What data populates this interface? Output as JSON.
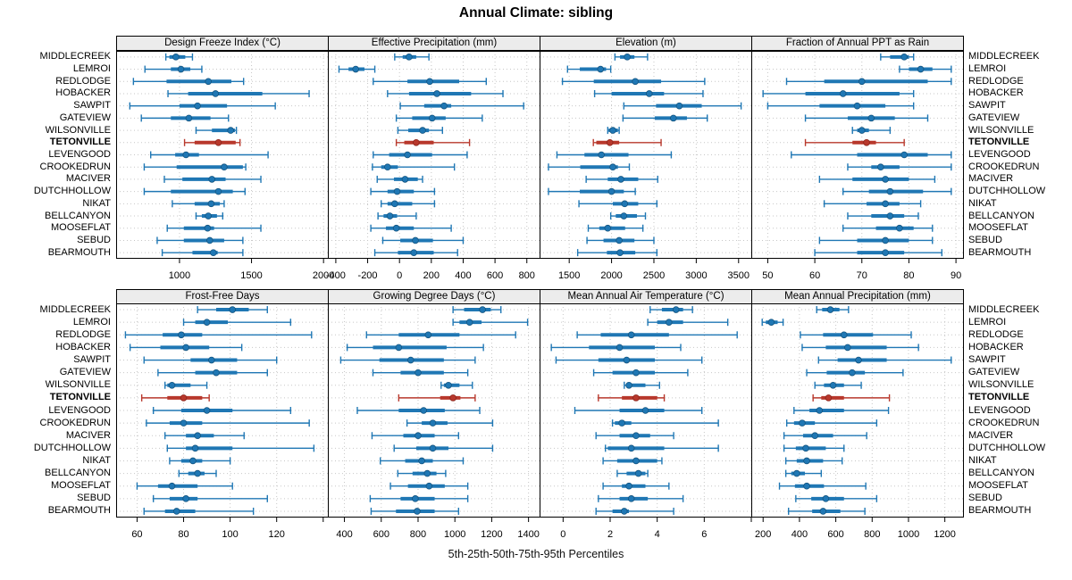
{
  "title": "Annual Climate: sibling",
  "caption": "5th-25th-50th-75th-95th Percentiles",
  "colors": {
    "series": "#1f77b4",
    "series_dark": "#14547f",
    "highlight": "#b8382c",
    "highlight_dark": "#8a241b",
    "strip_bg": "#ececec",
    "grid": "#c7c7c7",
    "border": "#000000"
  },
  "chart_data": {
    "type": "dotplot",
    "note": "Each row shows 5th-25th-50th-75th-95th percentile whisker/bar/dot",
    "percentile_labels": [
      "5th",
      "25th",
      "50th",
      "75th",
      "95th"
    ],
    "legend_position": "none",
    "grid": "dotted",
    "highlight_site": "TETONVILLE",
    "sites": [
      "MIDDLECREEK",
      "LEMROI",
      "REDLODGE",
      "HOBACKER",
      "SAWPIT",
      "GATEVIEW",
      "WILSONVILLE",
      "TETONVILLE",
      "LEVENGOOD",
      "CROOKEDRUN",
      "MACIVER",
      "DUTCHHOLLOW",
      "NIKAT",
      "BELLCANYON",
      "MOOSEFLAT",
      "SEBUD",
      "BEARMOUTH"
    ],
    "panels": [
      {
        "id": "design-freeze-index",
        "title": "Design Freeze Index (°C)",
        "xlim": [
          560,
          2030
        ],
        "ticks": [
          1000,
          1500,
          2000
        ],
        "tick_labels": [
          "1000",
          "1500",
          "2000"
        ],
        "values": [
          [
            905,
            930,
            975,
            1040,
            1090
          ],
          [
            760,
            940,
            1010,
            1075,
            1155
          ],
          [
            680,
            910,
            1200,
            1360,
            1445
          ],
          [
            920,
            1060,
            1250,
            1575,
            1900
          ],
          [
            655,
            1000,
            1125,
            1330,
            1665
          ],
          [
            735,
            940,
            1065,
            1215,
            1340
          ],
          [
            1115,
            1225,
            1355,
            1385,
            1395
          ],
          [
            1035,
            1105,
            1270,
            1390,
            1420
          ],
          [
            800,
            970,
            1045,
            1135,
            1615
          ],
          [
            755,
            980,
            1310,
            1440,
            1460
          ],
          [
            895,
            1020,
            1225,
            1320,
            1565
          ],
          [
            755,
            940,
            1270,
            1370,
            1455
          ],
          [
            950,
            1105,
            1220,
            1280,
            1310
          ],
          [
            1115,
            1155,
            1200,
            1260,
            1300
          ],
          [
            915,
            1030,
            1195,
            1240,
            1565
          ],
          [
            845,
            1030,
            1210,
            1310,
            1440
          ],
          [
            880,
            1090,
            1235,
            1265,
            1440
          ]
        ]
      },
      {
        "id": "effective-precipitation",
        "title": "Effective Precipitation (mm)",
        "xlim": [
          -450,
          880
        ],
        "ticks": [
          -400,
          -200,
          0,
          200,
          400,
          600,
          800
        ],
        "tick_labels": [
          "-400",
          "-200",
          "0",
          "200",
          "400",
          "600",
          "800"
        ],
        "values": [
          [
            -30,
            20,
            60,
            105,
            185
          ],
          [
            -380,
            -320,
            -275,
            -220,
            -155
          ],
          [
            -165,
            50,
            190,
            375,
            545
          ],
          [
            -75,
            60,
            235,
            450,
            650
          ],
          [
            5,
            155,
            280,
            325,
            780
          ],
          [
            -20,
            80,
            205,
            290,
            520
          ],
          [
            -10,
            55,
            145,
            185,
            270
          ],
          [
            -20,
            30,
            105,
            215,
            440
          ],
          [
            -165,
            -65,
            50,
            205,
            425
          ],
          [
            -170,
            -115,
            -75,
            -10,
            345
          ],
          [
            -140,
            -35,
            35,
            115,
            145
          ],
          [
            -180,
            -75,
            -15,
            90,
            220
          ],
          [
            -115,
            -75,
            -30,
            80,
            220
          ],
          [
            -135,
            -100,
            -60,
            -15,
            105
          ],
          [
            -180,
            -85,
            -20,
            90,
            325
          ],
          [
            -105,
            5,
            100,
            210,
            400
          ],
          [
            -155,
            -10,
            90,
            215,
            365
          ]
        ]
      },
      {
        "id": "elevation",
        "title": "Elevation (m)",
        "xlim": [
          1150,
          3650
        ],
        "ticks": [
          1500,
          2000,
          2500,
          3000,
          3500
        ],
        "tick_labels": [
          "1500",
          "2000",
          "2500",
          "3000",
          "3500"
        ],
        "values": [
          [
            2040,
            2100,
            2185,
            2270,
            2425
          ],
          [
            1480,
            1625,
            1870,
            1935,
            1990
          ],
          [
            1420,
            1790,
            2280,
            2585,
            3100
          ],
          [
            1800,
            2000,
            2445,
            2620,
            3080
          ],
          [
            2145,
            2525,
            2800,
            3065,
            3530
          ],
          [
            2135,
            2510,
            2730,
            2890,
            3130
          ],
          [
            1955,
            1965,
            2015,
            2075,
            2090
          ],
          [
            1785,
            1820,
            1980,
            2090,
            2585
          ],
          [
            1355,
            1680,
            1880,
            2200,
            2705
          ],
          [
            1255,
            1630,
            2015,
            2075,
            2210
          ],
          [
            1700,
            1955,
            2110,
            2315,
            2545
          ],
          [
            1255,
            1625,
            2000,
            2145,
            2280
          ],
          [
            1615,
            2015,
            2155,
            2315,
            2535
          ],
          [
            1990,
            2050,
            2145,
            2300,
            2400
          ],
          [
            1725,
            1855,
            1955,
            2160,
            2370
          ],
          [
            1710,
            1905,
            2090,
            2270,
            2500
          ],
          [
            1600,
            1945,
            2100,
            2280,
            2535
          ]
        ]
      },
      {
        "id": "fraction-ppt-rain",
        "title": "Fraction of Annual PPT as Rain",
        "xlim": [
          46.5,
          91.5
        ],
        "ticks": [
          50,
          60,
          70,
          80,
          90
        ],
        "tick_labels": [
          "50",
          "60",
          "70",
          "80",
          "90"
        ],
        "values": [
          [
            74,
            76,
            79,
            80,
            81
          ],
          [
            78,
            80,
            82.5,
            85,
            89
          ],
          [
            54,
            62,
            70,
            84,
            89
          ],
          [
            49,
            58,
            66,
            78,
            81
          ],
          [
            50,
            61,
            69,
            75,
            81
          ],
          [
            58,
            67,
            72,
            77,
            84
          ],
          [
            68,
            69,
            70,
            71.5,
            76
          ],
          [
            58,
            68,
            71,
            73,
            79
          ],
          [
            55,
            69,
            79,
            84,
            89
          ],
          [
            67,
            72,
            74,
            78,
            89
          ],
          [
            61,
            68,
            75,
            80,
            85.5
          ],
          [
            66,
            71.5,
            76,
            83,
            89
          ],
          [
            62,
            71,
            75,
            78,
            82.5
          ],
          [
            67,
            72,
            76,
            79,
            82
          ],
          [
            66,
            73,
            78,
            81,
            85
          ],
          [
            61,
            69,
            75,
            80,
            85
          ],
          [
            60,
            69,
            75,
            79,
            87
          ]
        ]
      },
      {
        "id": "frost-free-days",
        "title": "Frost-Free Days",
        "xlim": [
          51,
          142
        ],
        "ticks": [
          60,
          80,
          100,
          120,
          140
        ],
        "tick_labels": [
          "60",
          "80",
          "100",
          "120",
          ""
        ],
        "values": [
          [
            86,
            94,
            101,
            108,
            116
          ],
          [
            80,
            85,
            90,
            99,
            126
          ],
          [
            55,
            71,
            79,
            88,
            135
          ],
          [
            57,
            70,
            81,
            91,
            105
          ],
          [
            63,
            83,
            92,
            103,
            120
          ],
          [
            69,
            85,
            94,
            103,
            116
          ],
          [
            72,
            73,
            75,
            83,
            90
          ],
          [
            62,
            73,
            80,
            88,
            91
          ],
          [
            67,
            79,
            90,
            101,
            126
          ],
          [
            64,
            74,
            80,
            88,
            134
          ],
          [
            72,
            81,
            86,
            93,
            106
          ],
          [
            73,
            81,
            85,
            101,
            136
          ],
          [
            74,
            79,
            84,
            88,
            100
          ],
          [
            78,
            82,
            86,
            89,
            94
          ],
          [
            60,
            69,
            75,
            86,
            101
          ],
          [
            67,
            74,
            81,
            86,
            116
          ],
          [
            63,
            72,
            77,
            85,
            110
          ]
        ]
      },
      {
        "id": "growing-degree-days",
        "title": "Growing Degree Days (°C)",
        "xlim": [
          310,
          1460
        ],
        "ticks": [
          400,
          600,
          800,
          1000,
          1200,
          1400
        ],
        "tick_labels": [
          "400",
          "600",
          "800",
          "1000",
          "1200",
          "1400"
        ],
        "values": [
          [
            990,
            1050,
            1150,
            1195,
            1250
          ],
          [
            990,
            1025,
            1080,
            1145,
            1395
          ],
          [
            520,
            695,
            855,
            1025,
            1330
          ],
          [
            415,
            555,
            695,
            955,
            1155
          ],
          [
            380,
            590,
            760,
            940,
            1110
          ],
          [
            555,
            705,
            800,
            940,
            1070
          ],
          [
            925,
            940,
            965,
            1025,
            1095
          ],
          [
            695,
            920,
            990,
            1030,
            1110
          ],
          [
            470,
            695,
            830,
            945,
            1135
          ],
          [
            740,
            820,
            880,
            960,
            1205
          ],
          [
            550,
            720,
            800,
            890,
            1020
          ],
          [
            670,
            790,
            880,
            965,
            1205
          ],
          [
            595,
            730,
            820,
            880,
            1045
          ],
          [
            690,
            770,
            850,
            900,
            950
          ],
          [
            650,
            745,
            860,
            945,
            1070
          ],
          [
            540,
            705,
            785,
            890,
            1070
          ],
          [
            545,
            680,
            795,
            890,
            1020
          ]
        ]
      },
      {
        "id": "mean-annual-air-temperature",
        "title": "Mean Annual Air Temperature (°C)",
        "xlim": [
          -1,
          8
        ],
        "ticks": [
          0,
          2,
          4,
          6,
          8
        ],
        "tick_labels": [
          "0",
          "2",
          "4",
          "6",
          ""
        ],
        "values": [
          [
            3.7,
            4.2,
            4.8,
            5.1,
            5.5
          ],
          [
            3.6,
            4.0,
            4.5,
            5.1,
            7.0
          ],
          [
            0.6,
            1.6,
            2.9,
            4.5,
            7.4
          ],
          [
            -0.5,
            1.1,
            2.4,
            3.9,
            5.0
          ],
          [
            -0.3,
            1.5,
            2.7,
            3.9,
            5.9
          ],
          [
            1.3,
            2.1,
            3.1,
            3.9,
            5.3
          ],
          [
            2.6,
            2.7,
            2.8,
            3.5,
            4.1
          ],
          [
            1.5,
            2.5,
            3.1,
            4.0,
            4.3
          ],
          [
            0.5,
            2.4,
            3.5,
            4.3,
            5.9
          ],
          [
            2.1,
            2.2,
            2.5,
            2.9,
            6.6
          ],
          [
            1.4,
            2.4,
            3.1,
            3.7,
            4.7
          ],
          [
            1.8,
            1.9,
            2.9,
            4.3,
            6.6
          ],
          [
            1.7,
            2.3,
            3.1,
            4.0,
            4.2
          ],
          [
            2.3,
            2.7,
            3.2,
            3.5,
            3.6
          ],
          [
            1.7,
            2.5,
            2.8,
            3.5,
            4.5
          ],
          [
            1.5,
            2.4,
            2.9,
            3.6,
            5.1
          ],
          [
            1.4,
            2.1,
            2.6,
            2.8,
            4.7
          ]
        ]
      },
      {
        "id": "mean-annual-precipitation",
        "title": "Mean Annual Precipitation (mm)",
        "xlim": [
          135,
          1300
        ],
        "ticks": [
          200,
          400,
          600,
          800,
          1000,
          1200
        ],
        "tick_labels": [
          "200",
          "400",
          "600",
          "800",
          "1000",
          "1200"
        ],
        "values": [
          [
            495,
            525,
            570,
            620,
            670
          ],
          [
            195,
            215,
            245,
            280,
            310
          ],
          [
            405,
            530,
            645,
            805,
            1015
          ],
          [
            415,
            545,
            665,
            880,
            1055
          ],
          [
            505,
            610,
            725,
            880,
            1235
          ],
          [
            440,
            550,
            690,
            760,
            970
          ],
          [
            485,
            535,
            585,
            645,
            740
          ],
          [
            475,
            520,
            560,
            645,
            895
          ],
          [
            370,
            455,
            510,
            645,
            890
          ],
          [
            330,
            370,
            415,
            485,
            825
          ],
          [
            315,
            420,
            485,
            585,
            770
          ],
          [
            315,
            380,
            435,
            545,
            645
          ],
          [
            325,
            385,
            440,
            530,
            635
          ],
          [
            325,
            355,
            385,
            430,
            520
          ],
          [
            290,
            375,
            440,
            535,
            765
          ],
          [
            380,
            465,
            545,
            645,
            825
          ],
          [
            340,
            470,
            530,
            625,
            760
          ]
        ]
      }
    ]
  }
}
